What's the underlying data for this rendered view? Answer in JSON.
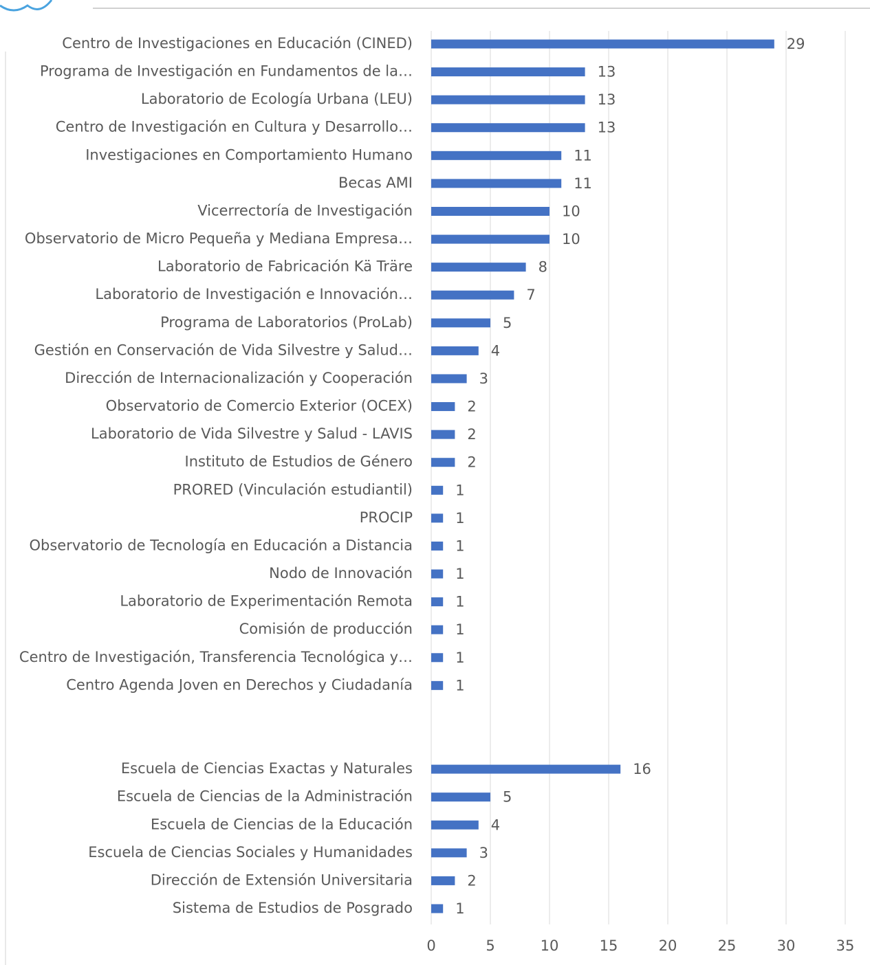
{
  "chart_data": {
    "type": "hbar",
    "color": "#4472c4",
    "grid": true,
    "categories": [
      "Centro de Investigaciones en Educación (CINED)",
      "Programa de Investigación en Fundamentos de la…",
      "Laboratorio de Ecología Urbana (LEU)",
      "Centro de Investigación en Cultura y Desarrollo…",
      "Investigaciones en Comportamiento Humano",
      "Becas AMI",
      "Vicerrectoría de Investigación",
      "Observatorio de Micro Pequeña y Mediana Empresa…",
      "Laboratorio de Fabricación Kä Träre",
      "Laboratorio de Investigación e Innovación…",
      "Programa de Laboratorios (ProLab)",
      "Gestión en Conservación de Vida Silvestre y Salud…",
      "Dirección de Internacionalización y Cooperación",
      "Observatorio de Comercio Exterior (OCEX)",
      "Laboratorio de Vida Silvestre y Salud - LAVIS",
      "Instituto de Estudios de Género",
      "PRORED (Vinculación estudiantil)",
      "PROCIP",
      "Observatorio de Tecnología en Educación a Distancia",
      "Nodo de Innovación",
      "Laboratorio de Experimentación Remota",
      "Comisión de producción",
      "Centro de Investigación, Transferencia Tecnológica y…",
      "Centro Agenda Joven en Derechos y Ciudadanía",
      null,
      null,
      "Escuela de Ciencias Exactas y Naturales",
      "Escuela de Ciencias de la Administración",
      "Escuela de Ciencias de la Educación",
      "Escuela de Ciencias Sociales y Humanidades",
      "Dirección de Extensión Universitaria",
      "Sistema de Estudios de Posgrado"
    ],
    "values": [
      29,
      13,
      13,
      13,
      11,
      11,
      10,
      10,
      8,
      7,
      5,
      4,
      3,
      2,
      2,
      2,
      1,
      1,
      1,
      1,
      1,
      1,
      1,
      1,
      null,
      null,
      16,
      5,
      4,
      3,
      2,
      1
    ],
    "xlim": [
      0,
      35
    ],
    "xticks": [
      0,
      5,
      10,
      15,
      20,
      25,
      30,
      35
    ]
  }
}
